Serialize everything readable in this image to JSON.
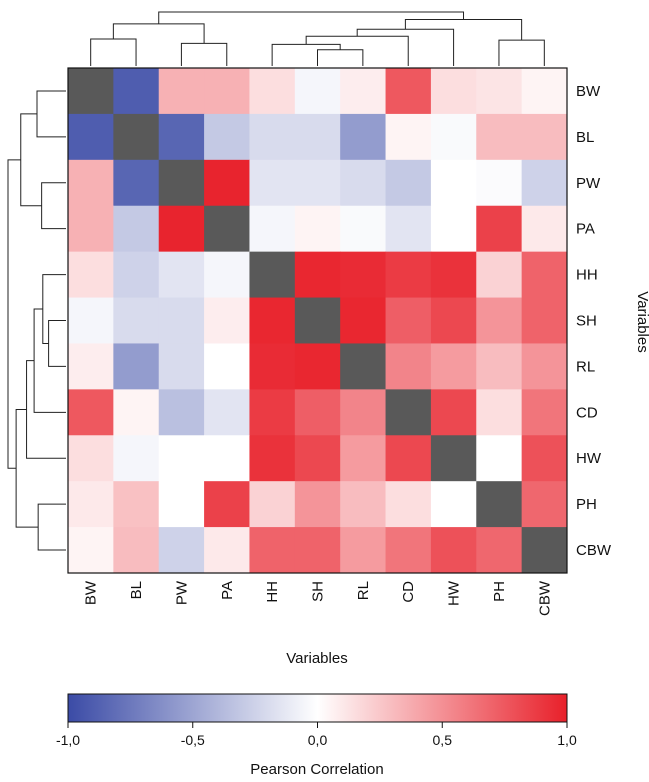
{
  "chart_data": {
    "type": "heatmap",
    "variables": [
      "BW",
      "BL",
      "PW",
      "PA",
      "HH",
      "SH",
      "RL",
      "CD",
      "HW",
      "PH",
      "CBW"
    ],
    "matrix": [
      [
        1.0,
        -0.9,
        0.35,
        0.35,
        0.15,
        -0.05,
        0.08,
        0.75,
        0.15,
        0.12,
        0.05
      ],
      [
        -0.9,
        1.0,
        -0.85,
        -0.3,
        -0.2,
        -0.2,
        -0.55,
        0.05,
        -0.03,
        0.3,
        0.3
      ],
      [
        0.35,
        -0.85,
        1.0,
        0.98,
        -0.15,
        -0.15,
        -0.2,
        -0.3,
        0.0,
        -0.02,
        -0.25
      ],
      [
        0.35,
        -0.3,
        0.98,
        1.0,
        -0.05,
        0.05,
        -0.03,
        -0.15,
        0.0,
        0.85,
        0.1
      ],
      [
        0.15,
        -0.25,
        -0.15,
        -0.05,
        1.0,
        0.97,
        0.95,
        0.88,
        0.92,
        0.2,
        0.7
      ],
      [
        -0.05,
        -0.2,
        -0.2,
        0.08,
        0.97,
        1.0,
        0.97,
        0.72,
        0.82,
        0.48,
        0.7
      ],
      [
        0.08,
        -0.55,
        -0.2,
        0.0,
        0.95,
        0.97,
        1.0,
        0.55,
        0.45,
        0.3,
        0.48
      ],
      [
        0.75,
        0.05,
        -0.35,
        -0.15,
        0.88,
        0.72,
        0.55,
        1.0,
        0.82,
        0.15,
        0.62
      ],
      [
        0.15,
        -0.05,
        0.0,
        0.0,
        0.92,
        0.82,
        0.45,
        0.82,
        1.0,
        0.0,
        0.78
      ],
      [
        0.1,
        0.28,
        0.0,
        0.85,
        0.2,
        0.48,
        0.3,
        0.15,
        0.0,
        1.0,
        0.68
      ],
      [
        0.05,
        0.3,
        -0.25,
        0.1,
        0.7,
        0.7,
        0.45,
        0.62,
        0.78,
        0.68,
        1.0
      ]
    ],
    "xlabel": "Variables",
    "ylabel": "Variables",
    "colorbar": {
      "title": "Pearson Correlation",
      "ticks": [
        "-1,0",
        "-0,5",
        "0,0",
        "0,5",
        "1,0"
      ],
      "range": [
        -1,
        1
      ],
      "low_color": "#3b4ba6",
      "mid_color": "#ffffff",
      "high_color": "#e8202a"
    },
    "diagonal_color": "#595959",
    "dendrograms": "top and left"
  }
}
